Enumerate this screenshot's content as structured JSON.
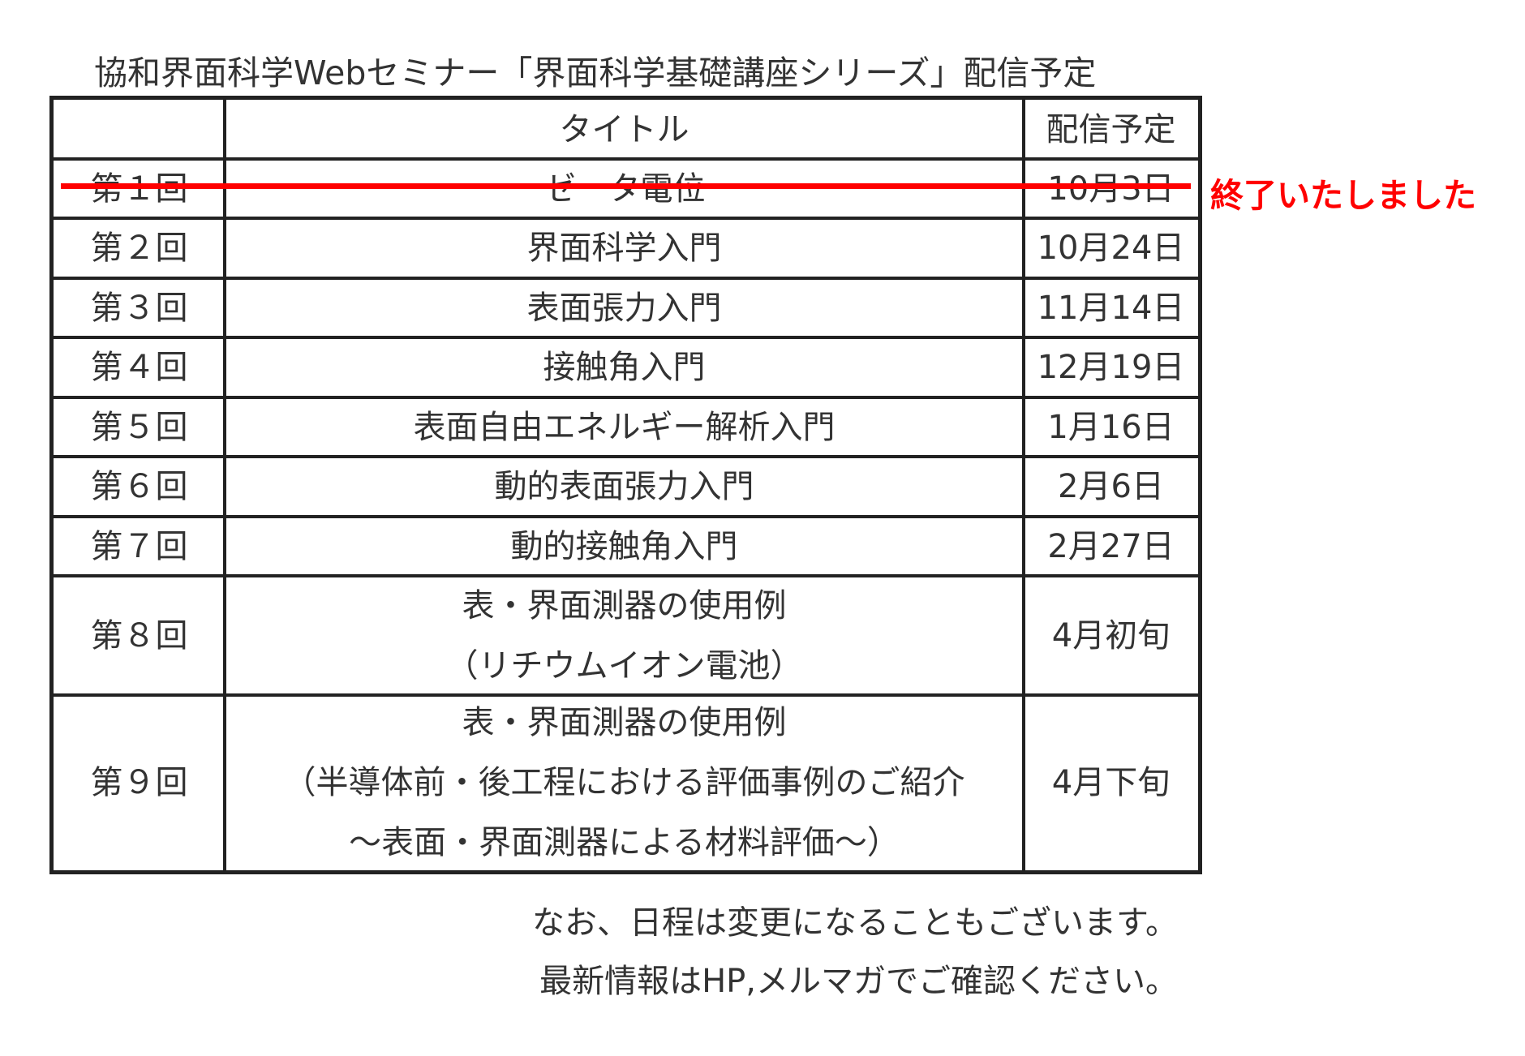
{
  "title": "協和界面科学Webセミナー「界面科学基礎講座シリーズ」配信予定",
  "table": {
    "header": [
      "",
      "タイトル",
      "配信予定"
    ],
    "rows": [
      [
        "第１回",
        [
          "ゼータ電位"
        ],
        "10月3日"
      ],
      [
        "第２回",
        [
          "界面科学入門"
        ],
        "10月24日"
      ],
      [
        "第３回",
        [
          "表面張力入門"
        ],
        "11月14日"
      ],
      [
        "第４回",
        [
          "接触角入門"
        ],
        "12月19日"
      ],
      [
        "第５回",
        [
          "表面自由エネルギー解析入門"
        ],
        "1月16日"
      ],
      [
        "第６回",
        [
          "動的表面張力入門"
        ],
        "2月6日"
      ],
      [
        "第７回",
        [
          "動的接触角入門"
        ],
        "2月27日"
      ],
      [
        "第８回",
        [
          "表・界面測器の使用例",
          "（リチウムイオン電池）"
        ],
        "4月初旬"
      ],
      [
        "第９回",
        [
          "表・界面測器の使用例",
          "（半導体前・後工程における評価事例のご紹介",
          "～表面・界面測器による材料評価～）"
        ],
        "4月下旬"
      ]
    ]
  },
  "status": "終了いたしました",
  "notes": [
    "なお、日程は変更になることもございます。",
    "最新情報はHP,メルマガでご確認ください。"
  ]
}
